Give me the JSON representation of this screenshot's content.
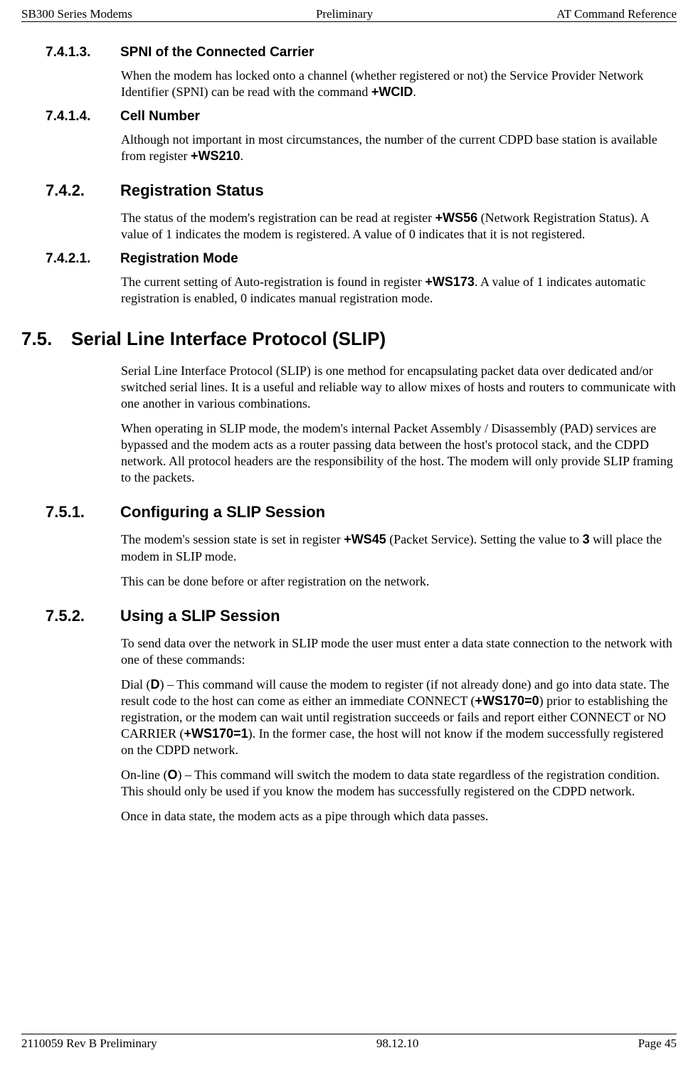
{
  "header": {
    "left": "SB300 Series Modems",
    "center": "Preliminary",
    "right": "AT Command Reference"
  },
  "s7413": {
    "num": "7.4.1.3.",
    "title": "SPNI of the Connected Carrier",
    "p1a": "When the modem has locked onto a channel (whether registered or not) the Service Provider Network Identifier (SPNI) can be read with the command ",
    "cmd": "+WCID",
    "p1b": "."
  },
  "s7414": {
    "num": "7.4.1.4.",
    "title": "Cell Number",
    "p1a": "Although not important in most circumstances, the number of the current CDPD base station is available from register ",
    "cmd": "+WS210",
    "p1b": "."
  },
  "s742": {
    "num": "7.4.2.",
    "title": "Registration Status",
    "p1a": "The status of the modem's registration can be read at register ",
    "cmd": "+WS56",
    "p1b": " (Network Registration Status).  A value of 1 indicates the modem is registered.  A value of 0 indicates that it is not registered."
  },
  "s7421": {
    "num": "7.4.2.1.",
    "title": "Registration Mode",
    "p1a": "The current setting of Auto-registration is found in register ",
    "cmd": "+WS173",
    "p1b": ".  A value of 1 indicates automatic registration is enabled, 0 indicates manual registration mode."
  },
  "s75": {
    "num": "7.5.",
    "title": "Serial Line Interface Protocol (SLIP)",
    "p1": "Serial Line Interface Protocol (SLIP) is one method for encapsulating packet data over dedicated and/or switched serial lines.  It is a useful and reliable way to allow mixes of hosts and routers to communicate with one another in various combinations.",
    "p2": "When operating in SLIP mode, the modem's internal Packet Assembly / Disassembly (PAD) services are bypassed and the modem acts as a router passing data between the host's protocol stack, and the CDPD network.  All protocol headers are the responsibility of the host.  The modem will only provide SLIP framing to the packets."
  },
  "s751": {
    "num": "7.5.1.",
    "title": "Configuring a SLIP Session",
    "p1a": "The modem's session state is set in register ",
    "cmd1": "+WS45",
    "p1b": " (Packet Service).  Setting the value to ",
    "cmd2": "3",
    "p1c": " will place the modem in SLIP mode.",
    "p2": "This can be done before or after registration on the network."
  },
  "s752": {
    "num": "7.5.2.",
    "title": "Using a SLIP Session",
    "p1": "To send data over the network in SLIP mode the user must enter a data state connection to the network with one of these commands:",
    "p2a": "Dial (",
    "cmdD": "D",
    "p2b": ") – This command will cause the modem to register (if not already done) and go into data state.  The result code to the host can come as either an immediate CONNECT (",
    "cmd170_0": "+WS170=0",
    "p2c": ") prior to establishing the registration, or the modem can wait until registration succeeds or fails and report either CONNECT or NO CARRIER (",
    "cmd170_1": "+WS170=1",
    "p2d": ").  In the former case, the host will not know if the modem successfully registered on the CDPD network.",
    "p3a": "On-line (",
    "cmdO": "O",
    "p3b": ") – This command will switch the modem to data state regardless of the registration condition.  This should only be used if you know the modem has successfully registered on the CDPD network.",
    "p4": "Once in data state, the modem acts as a pipe through which data passes."
  },
  "footer": {
    "left": "2110059 Rev B Preliminary",
    "center": "98.12.10",
    "right": "Page 45"
  }
}
